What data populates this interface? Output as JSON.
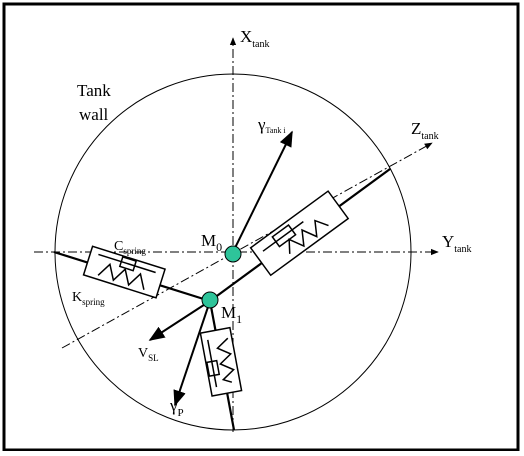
{
  "diagram": {
    "tank_wall_label_line1": "Tank",
    "tank_wall_label_line2": "wall",
    "axes": {
      "x": {
        "main": "X",
        "sub": "tank"
      },
      "y": {
        "main": "Y",
        "sub": "tank"
      },
      "z": {
        "main": "Z",
        "sub": "tank"
      }
    },
    "points": {
      "m0": {
        "main": "M",
        "sub": "0"
      },
      "m1": {
        "main": "M",
        "sub": "1"
      }
    },
    "vectors": {
      "gamma_tank": {
        "main": "γ",
        "sub": "Tank i"
      },
      "v_sl": {
        "main": "V",
        "sub": "SL"
      },
      "gamma_p": {
        "main": "γ",
        "sub": "P"
      }
    },
    "spring_labels": {
      "c_spring": {
        "main": "C",
        "sub": "spring"
      },
      "k_spring": {
        "main": "K",
        "sub": "spring"
      }
    },
    "colors": {
      "mass_fill": "#2ec49a",
      "line": "#000000",
      "background": "#ffffff"
    }
  }
}
